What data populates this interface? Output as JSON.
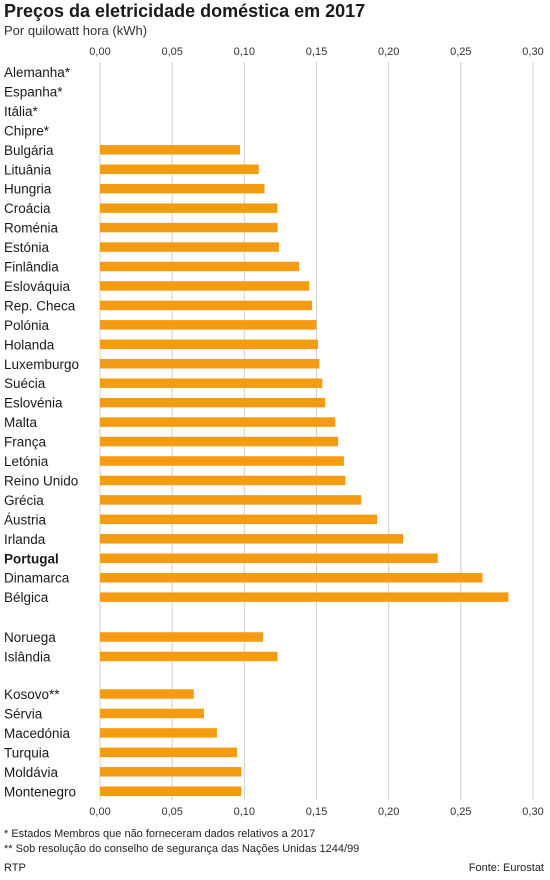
{
  "header": {
    "title": "Preços da eletricidade doméstica em 2017",
    "subtitle": "Por quilowatt hora (kWh)"
  },
  "chart_data": {
    "type": "bar",
    "orientation": "horizontal",
    "title": "Preços da eletricidade doméstica em 2017",
    "subtitle": "Por quilowatt hora (kWh)",
    "xlim": [
      0,
      0.3
    ],
    "ticks": [
      "0,00",
      "0,05",
      "0,10",
      "0,15",
      "0,20",
      "0,25",
      "0,30"
    ],
    "tick_values": [
      0,
      0.05,
      0.1,
      0.15,
      0.2,
      0.25,
      0.3
    ],
    "grid": true,
    "bar_color": "#f39c12",
    "highlight": "Portugal",
    "categories": [
      "Alemanha*",
      "Espanha*",
      "Itália*",
      "Chipre*",
      "Bulgária",
      "Lituânia",
      "Hungria",
      "Croácia",
      "Roménia",
      "Estónia",
      "Finlândia",
      "Eslováquia",
      "Rep. Checa",
      "Polónia",
      "Holanda",
      "Luxemburgo",
      "Suécia",
      "Eslovénia",
      "Malta",
      "França",
      "Letónia",
      "Reino Unido",
      "Grécia",
      "Áustria",
      "Irlanda",
      "Portugal",
      "Dinamarca",
      "Bélgica",
      "Noruega",
      "Islândia",
      "Kosovo**",
      "Sérvia",
      "Macedónia",
      "Turquia",
      "Moldávia",
      "Montenegro"
    ],
    "values": [
      null,
      null,
      null,
      null,
      0.097,
      0.11,
      0.114,
      0.123,
      0.123,
      0.124,
      0.138,
      0.145,
      0.147,
      0.15,
      0.151,
      0.152,
      0.154,
      0.156,
      0.163,
      0.165,
      0.169,
      0.17,
      0.181,
      0.192,
      0.21,
      0.234,
      0.265,
      0.283,
      0.113,
      0.123,
      0.065,
      0.072,
      0.081,
      0.095,
      0.098,
      0.098
    ]
  },
  "footer": {
    "note1": "* Estados Membros que não forneceram dados relativos a 2017",
    "note2": "** Sob resolução do conselho de segurança das Nações Unidas 1244/99",
    "source": "Fonte: Eurostat",
    "brand": "RTP"
  }
}
